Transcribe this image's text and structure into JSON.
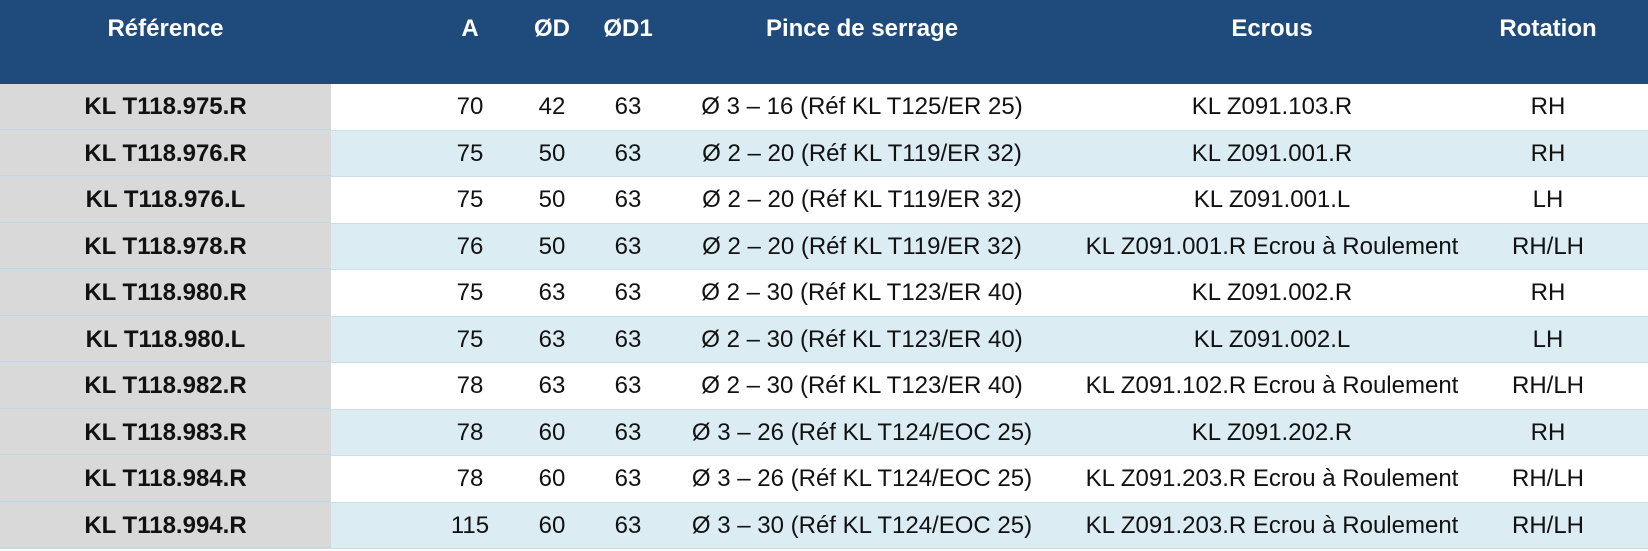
{
  "table": {
    "headers": [
      "Référence",
      "A",
      "ØD",
      "ØD1",
      "Pince de serrage",
      "Ecrous",
      "Rotation"
    ],
    "rows": [
      [
        "KL T118.975.R",
        "70",
        "42",
        "63",
        "Ø 3 – 16 (Réf KL T125/ER 25)",
        "KL Z091.103.R",
        "RH"
      ],
      [
        "KL T118.976.R",
        "75",
        "50",
        "63",
        "Ø 2 – 20 (Réf KL T119/ER 32)",
        "KL Z091.001.R",
        "RH"
      ],
      [
        "KL T118.976.L",
        "75",
        "50",
        "63",
        "Ø 2 – 20 (Réf KL T119/ER 32)",
        "KL Z091.001.L",
        "LH"
      ],
      [
        "KL T118.978.R",
        "76",
        "50",
        "63",
        "Ø 2 – 20 (Réf KL T119/ER 32)",
        "KL Z091.001.R Ecrou à Roulement",
        "RH/LH"
      ],
      [
        "KL T118.980.R",
        "75",
        "63",
        "63",
        "Ø 2 – 30 (Réf KL T123/ER 40)",
        "KL Z091.002.R",
        "RH"
      ],
      [
        "KL T118.980.L",
        "75",
        "63",
        "63",
        "Ø 2 – 30 (Réf KL T123/ER 40)",
        "KL Z091.002.L",
        "LH"
      ],
      [
        "KL T118.982.R",
        "78",
        "63",
        "63",
        "Ø 2 – 30 (Réf KL T123/ER 40)",
        "KL Z091.102.R Ecrou à Roulement",
        "RH/LH"
      ],
      [
        "KL T118.983.R",
        "78",
        "60",
        "63",
        "Ø 3 – 26 (Réf KL T124/EOC 25)",
        "KL Z091.202.R",
        "RH"
      ],
      [
        "KL T118.984.R",
        "78",
        "60",
        "63",
        "Ø 3 – 26 (Réf KL T124/EOC 25)",
        "KL Z091.203.R Ecrou à Roulement",
        "RH/LH"
      ],
      [
        "KL T118.994.R",
        "115",
        "60",
        "63",
        "Ø 3 – 30 (Réf KL T124/EOC 25)",
        "KL Z091.203.R Ecrou à Roulement",
        "RH/LH"
      ]
    ]
  },
  "colors": {
    "header_bg": "#1f4a7c",
    "header_text": "#ffffff",
    "row_alt_bg": "#dbecf3",
    "reference_col_bg": "#d9d9d9"
  }
}
